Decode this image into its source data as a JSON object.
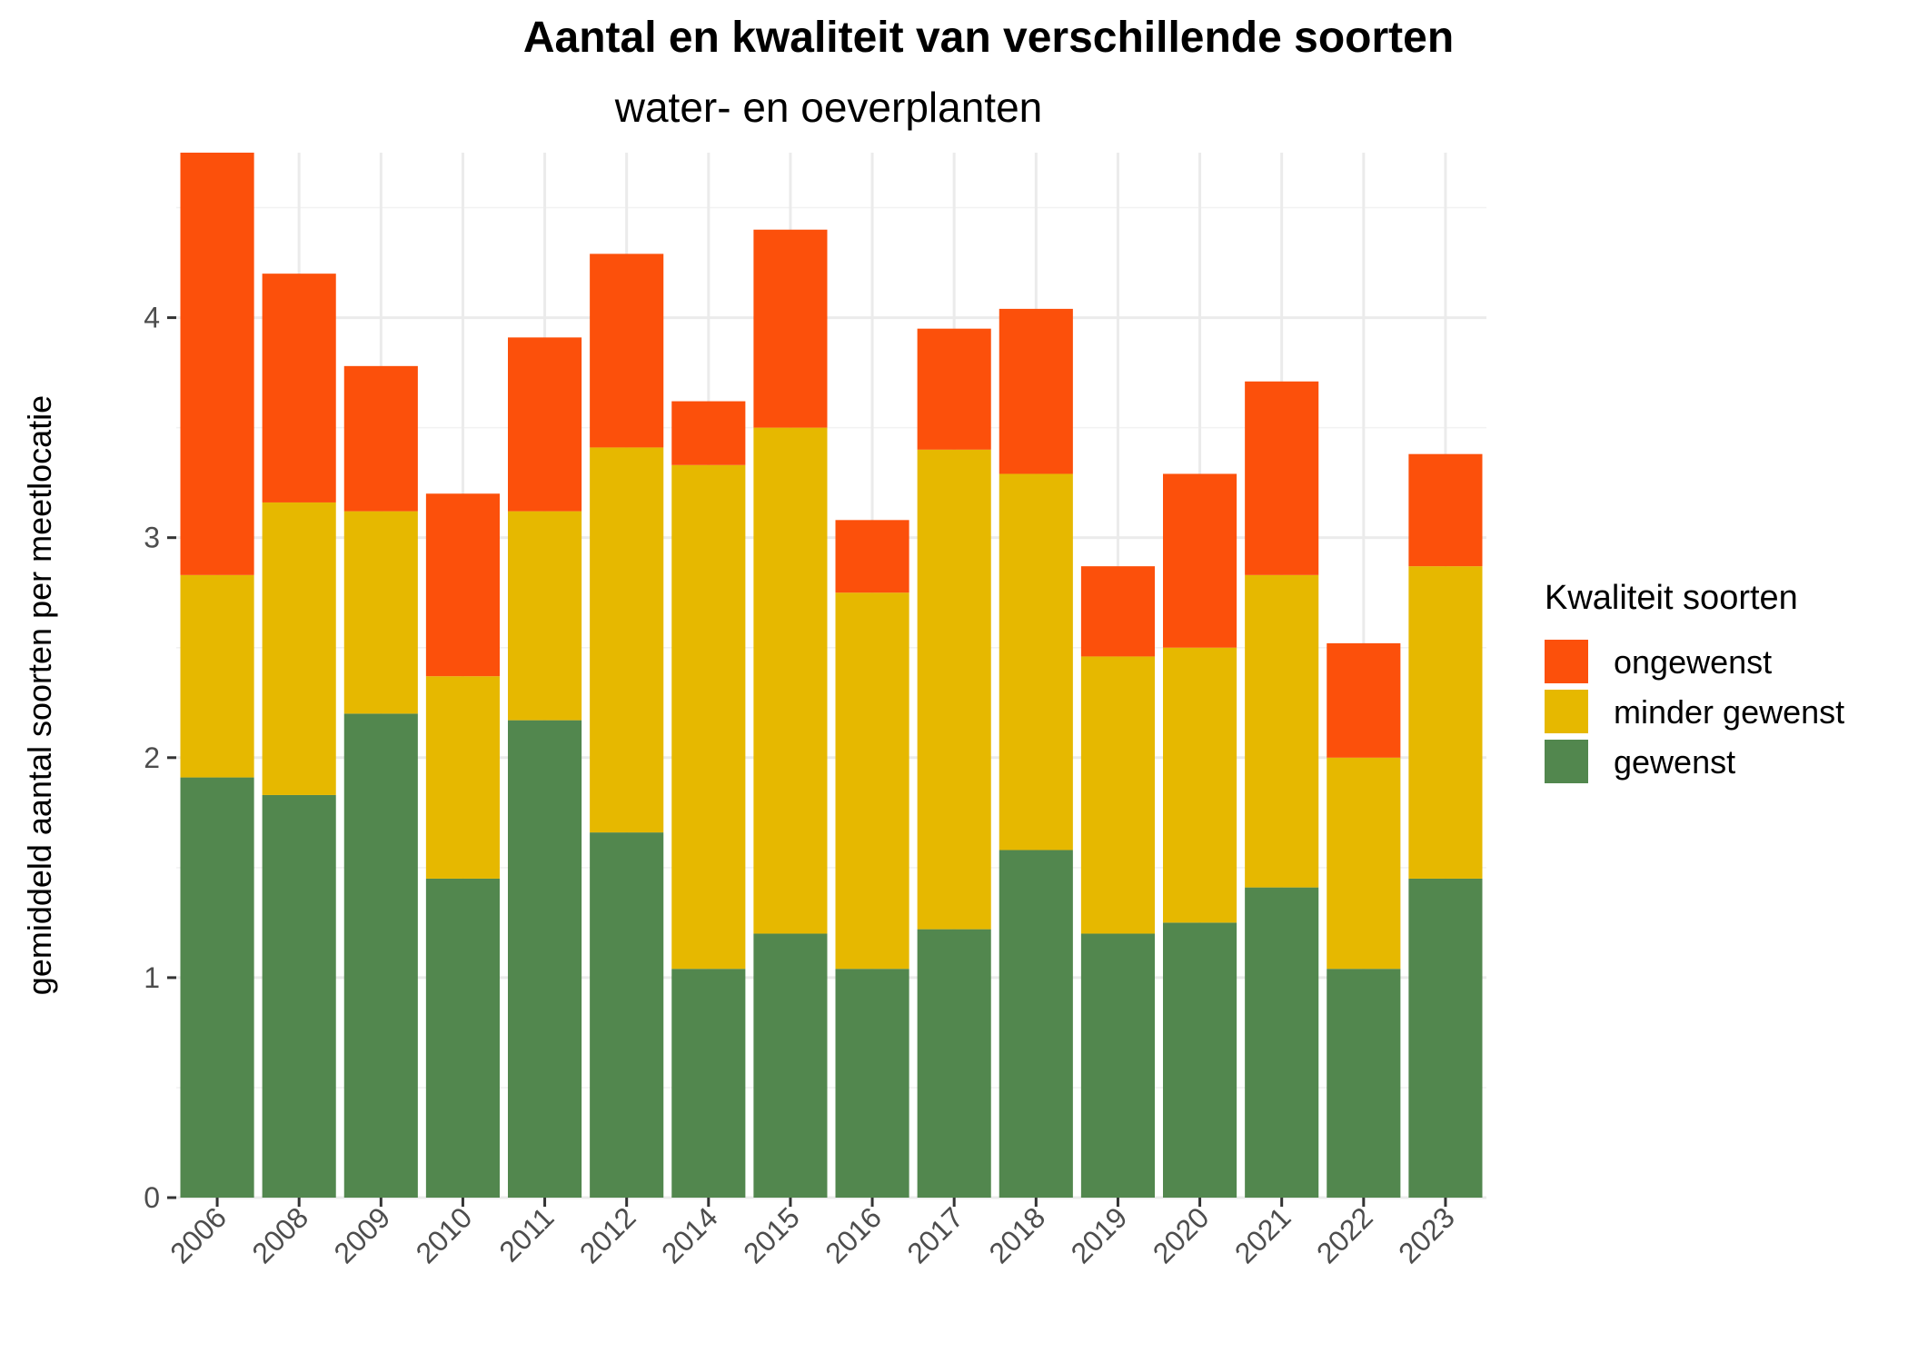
{
  "chart_data": {
    "type": "bar",
    "stacked": true,
    "title": "Aantal en kwaliteit van verschillende soorten",
    "subtitle": "water- en oeverplanten",
    "xlabel": "",
    "ylabel": "gemiddeld aantal soorten per meetlocatie",
    "ylim": [
      0,
      4.75
    ],
    "yticks": [
      "0",
      "1",
      "2",
      "3",
      "4"
    ],
    "grid": true,
    "legend_title": "Kwaliteit soorten",
    "legend_position": "right",
    "categories": [
      "2006",
      "2008",
      "2009",
      "2010",
      "2011",
      "2012",
      "2014",
      "2015",
      "2016",
      "2017",
      "2018",
      "2019",
      "2020",
      "2021",
      "2022",
      "2023"
    ],
    "series": [
      {
        "name": "gewenst",
        "color": "#52874e",
        "values": [
          1.91,
          1.83,
          2.2,
          1.45,
          2.17,
          1.66,
          1.04,
          1.2,
          1.04,
          1.22,
          1.58,
          1.2,
          1.25,
          1.41,
          1.04,
          1.45
        ]
      },
      {
        "name": "minder gewenst",
        "color": "#e6b800",
        "values": [
          0.92,
          1.33,
          0.92,
          0.92,
          0.95,
          1.75,
          2.29,
          2.3,
          1.71,
          2.18,
          1.71,
          1.26,
          1.25,
          1.42,
          0.96,
          1.42
        ]
      },
      {
        "name": "ongewenst",
        "color": "#fc500b",
        "values": [
          1.92,
          1.04,
          0.66,
          0.83,
          0.79,
          0.88,
          0.29,
          0.9,
          0.33,
          0.55,
          0.75,
          0.41,
          0.79,
          0.88,
          0.52,
          0.51
        ]
      }
    ],
    "legend_order": [
      "ongewenst",
      "minder gewenst",
      "gewenst"
    ]
  }
}
